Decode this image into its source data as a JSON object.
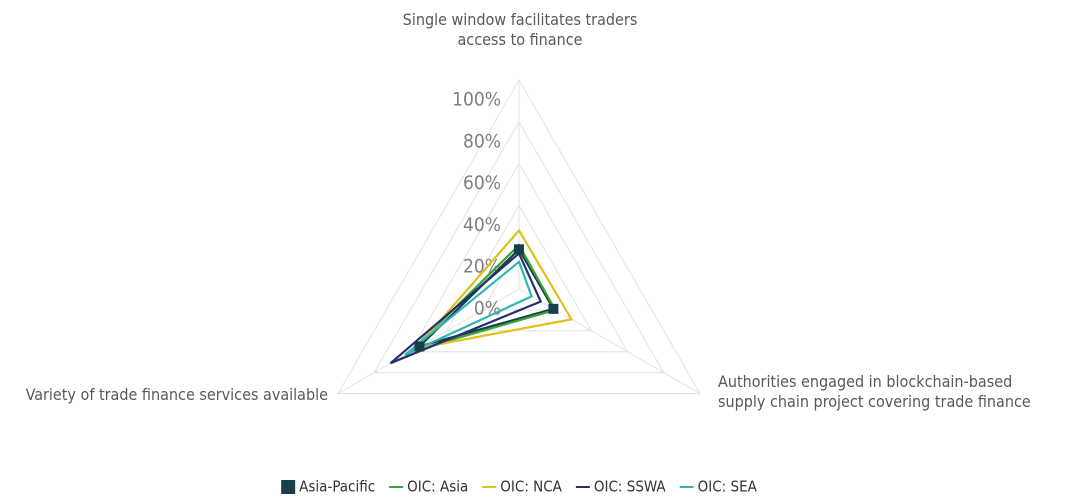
{
  "chart_data": {
    "type": "radar",
    "categories": [
      "Single window facilitates traders access to finance",
      "Authorities engaged in blockchain-based supply chain project covering trade finance",
      "Variety of trade finance services available"
    ],
    "series": [
      {
        "name": "Asia-Pacific",
        "color": "#17404a",
        "marker": "square",
        "values": [
          19,
          19,
          55
        ]
      },
      {
        "name": "OIC: Asia",
        "color": "#3aa335",
        "values": [
          21,
          20,
          60
        ]
      },
      {
        "name": "OIC: NCA",
        "color": "#e0c01c",
        "values": [
          28,
          29,
          57
        ]
      },
      {
        "name": "OIC: SSWA",
        "color": "#27306e",
        "values": [
          17,
          12,
          71
        ]
      },
      {
        "name": "OIC: SEA",
        "color": "#2fb5b5",
        "values": [
          13,
          7,
          63
        ]
      }
    ],
    "ylim": [
      0,
      100
    ],
    "yticks": [
      {
        "value": 0,
        "label": "0%"
      },
      {
        "value": 20,
        "label": "20%"
      },
      {
        "value": 40,
        "label": "40%"
      },
      {
        "value": 60,
        "label": "60%"
      },
      {
        "value": 80,
        "label": "80%"
      },
      {
        "value": 100,
        "label": "100%"
      }
    ],
    "grid": true,
    "legend": "bottom"
  }
}
